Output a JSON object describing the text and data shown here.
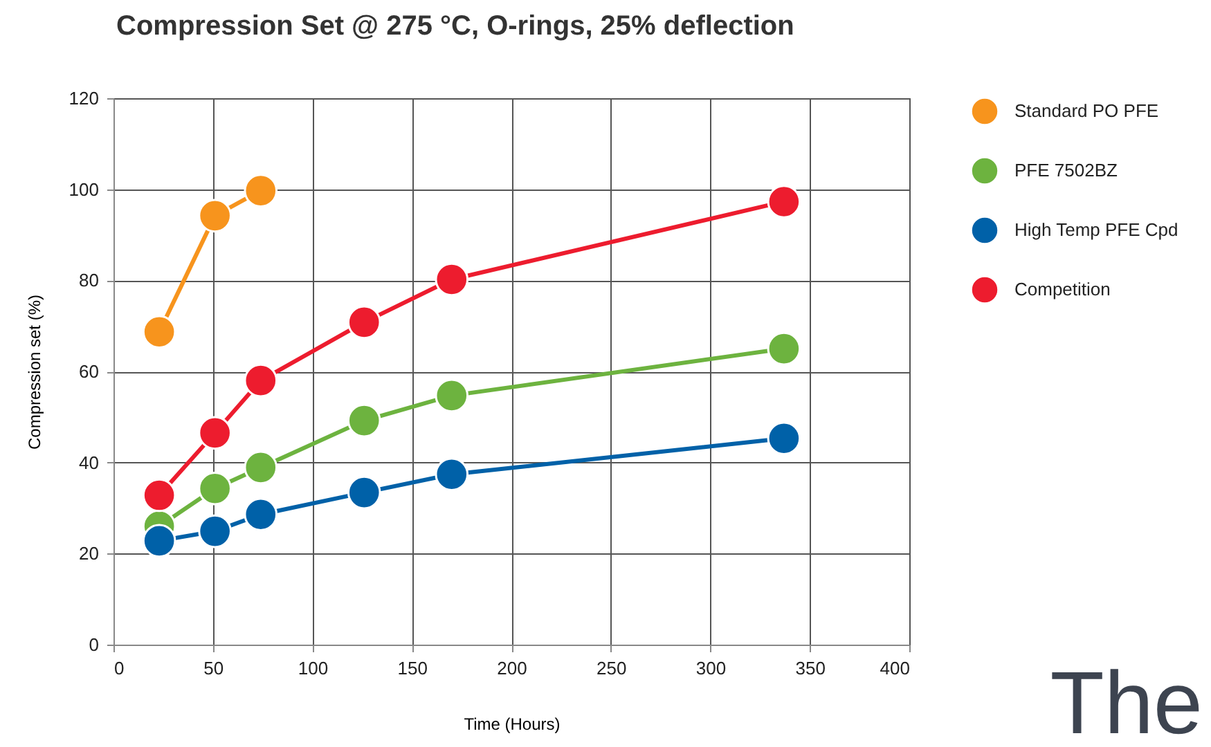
{
  "chart_data": {
    "type": "line",
    "title": "Compression Set @ 275 °C, O-rings, 25% deflection",
    "xlabel": "Time (Hours)",
    "ylabel": "Compression set (%)",
    "x": [
      23,
      51,
      74,
      126,
      170,
      337
    ],
    "series": [
      {
        "name": "Standard PO PFE",
        "color": "#f7941d",
        "x": [
          23,
          51,
          74
        ],
        "values": [
          68.7,
          94.2,
          99.7
        ]
      },
      {
        "name": "PFE 7502BZ",
        "color": "#6db33f",
        "values": [
          26,
          34.3,
          38.9,
          49.2,
          54.7,
          65
        ]
      },
      {
        "name": "High Temp PFE Cpd",
        "color": "#0061a8",
        "values": [
          22.8,
          24.9,
          28.6,
          33.4,
          37.4,
          45.3
        ]
      },
      {
        "name": "Competition",
        "color": "#ed1c2e",
        "values": [
          32.8,
          46.5,
          58,
          70.8,
          80.2,
          97.3
        ]
      }
    ],
    "xlim": [
      0,
      400
    ],
    "xticks": [
      0,
      50,
      100,
      150,
      200,
      250,
      300,
      350,
      400
    ],
    "ylim": [
      0,
      120
    ],
    "yticks": [
      0,
      20,
      40,
      60,
      80,
      100,
      120
    ],
    "grid": true,
    "legend": "top right",
    "marker": "circle",
    "line_style": "solid",
    "annotations": [
      "The"
    ]
  }
}
